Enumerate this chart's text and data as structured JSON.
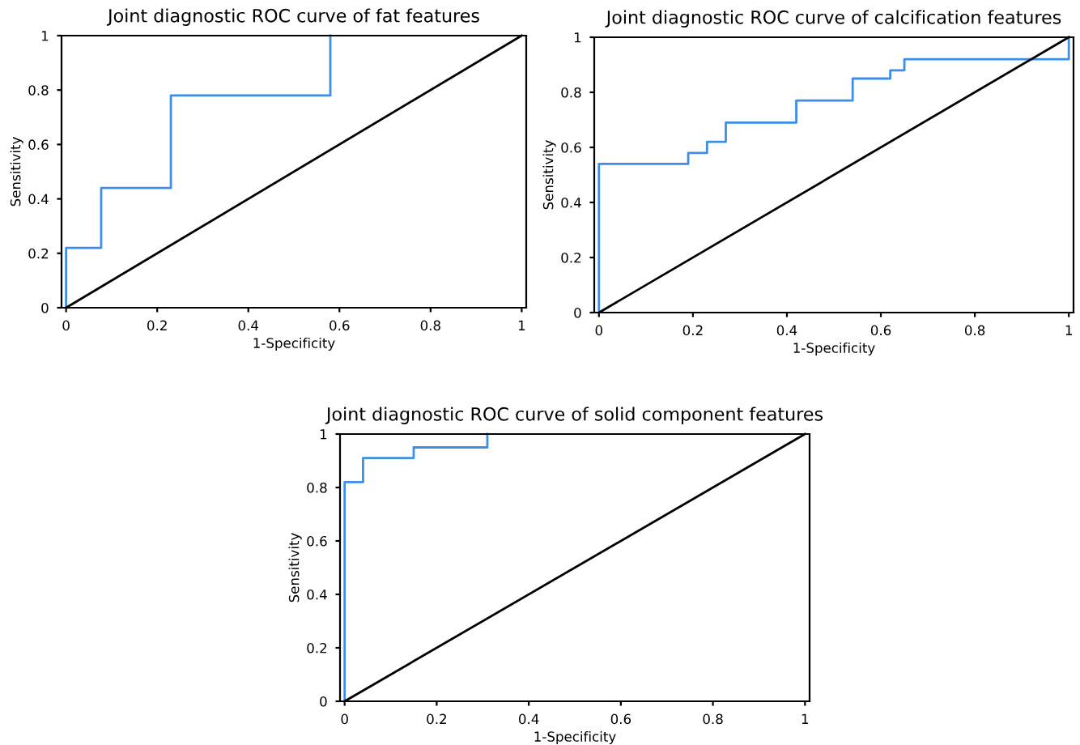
{
  "chart_data": [
    {
      "type": "line",
      "title": "Joint diagnostic ROC curve of fat features",
      "xlabel": "1-Specificity",
      "ylabel": "Sensitivity",
      "xlim": [
        -0.01,
        1.01
      ],
      "ylim": [
        0,
        1
      ],
      "xticks": [
        0,
        0.2,
        0.4,
        0.6,
        0.8,
        1
      ],
      "yticks": [
        0,
        0.2,
        0.4,
        0.6,
        0.8,
        1
      ],
      "series": [
        {
          "color": "#3c8ee8",
          "x": [
            0,
            0,
            0.077,
            0.077,
            0.23,
            0.23,
            0.58,
            0.58
          ],
          "values": [
            0,
            0.22,
            0.22,
            0.44,
            0.44,
            0.78,
            0.78,
            1
          ]
        },
        {
          "color": "#000000",
          "x": [
            0,
            1
          ],
          "values": [
            0,
            1
          ]
        }
      ]
    },
    {
      "type": "line",
      "title": "Joint diagnostic ROC curve of calcification features",
      "xlabel": "1-Specificity",
      "ylabel": "Sensitivity",
      "xlim": [
        -0.01,
        1.01
      ],
      "ylim": [
        0,
        1
      ],
      "xticks": [
        0,
        0.2,
        0.4,
        0.6,
        0.8,
        1
      ],
      "yticks": [
        0,
        0.2,
        0.4,
        0.6,
        0.8,
        1
      ],
      "series": [
        {
          "color": "#3c8ee8",
          "x": [
            0,
            0,
            0.19,
            0.19,
            0.23,
            0.23,
            0.27,
            0.27,
            0.42,
            0.42,
            0.54,
            0.54,
            0.62,
            0.62,
            0.65,
            0.65,
            1,
            1
          ],
          "values": [
            0,
            0.54,
            0.54,
            0.58,
            0.58,
            0.62,
            0.62,
            0.69,
            0.69,
            0.77,
            0.77,
            0.85,
            0.85,
            0.88,
            0.88,
            0.92,
            0.92,
            1
          ]
        },
        {
          "color": "#000000",
          "x": [
            0,
            1
          ],
          "values": [
            0,
            1
          ]
        }
      ]
    },
    {
      "type": "line",
      "title": "Joint diagnostic ROC curve of solid component features",
      "xlabel": "1-Specificity",
      "ylabel": "Sensitivity",
      "xlim": [
        -0.01,
        1.01
      ],
      "ylim": [
        0,
        1
      ],
      "xticks": [
        0,
        0.2,
        0.4,
        0.6,
        0.8,
        1
      ],
      "yticks": [
        0,
        0.2,
        0.4,
        0.6,
        0.8,
        1
      ],
      "series": [
        {
          "color": "#3c8ee8",
          "x": [
            0,
            0,
            0.04,
            0.04,
            0.15,
            0.15,
            0.31,
            0.31
          ],
          "values": [
            0,
            0.82,
            0.82,
            0.91,
            0.91,
            0.95,
            0.95,
            1
          ]
        },
        {
          "color": "#000000",
          "x": [
            0,
            1
          ],
          "values": [
            0,
            1
          ]
        }
      ]
    }
  ]
}
